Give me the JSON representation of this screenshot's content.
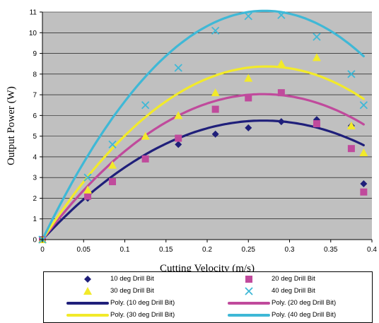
{
  "chart_data": {
    "type": "scatter",
    "title": "",
    "xlabel": "Cutting Velocity (m/s)",
    "ylabel": "Output Power (W)",
    "xlim": [
      0,
      0.4
    ],
    "ylim": [
      0,
      11
    ],
    "xticks": [
      "0",
      "0.05",
      "0.1",
      "0.15",
      "0.2",
      "0.25",
      "0.3",
      "0.35",
      "0.4"
    ],
    "yticks": [
      "0",
      "1",
      "2",
      "3",
      "4",
      "5",
      "6",
      "7",
      "8",
      "9",
      "10",
      "11"
    ],
    "grid": true,
    "legend_position": "bottom",
    "series": [
      {
        "name": "10 deg Drill Bit",
        "marker": "diamond",
        "color": "#1f1f7a",
        "x": [
          0,
          0.055,
          0.085,
          0.125,
          0.165,
          0.21,
          0.25,
          0.29,
          0.333,
          0.375,
          0.39
        ],
        "y": [
          0,
          2,
          2.8,
          3.9,
          4.6,
          5.1,
          5.4,
          5.7,
          5.8,
          5.5,
          2.7
        ]
      },
      {
        "name": "20 deg Drill Bit",
        "marker": "square",
        "color": "#c04a9c",
        "x": [
          0,
          0.055,
          0.085,
          0.125,
          0.165,
          0.21,
          0.25,
          0.29,
          0.333,
          0.375,
          0.39
        ],
        "y": [
          0,
          2.1,
          2.8,
          3.9,
          4.9,
          6.3,
          6.85,
          7.1,
          5.6,
          4.4,
          2.3
        ]
      },
      {
        "name": "30 deg Drill Bit",
        "marker": "triangle",
        "color": "#f2ea2a",
        "x": [
          0,
          0.055,
          0.085,
          0.125,
          0.165,
          0.21,
          0.25,
          0.29,
          0.333,
          0.375,
          0.39
        ],
        "y": [
          0,
          2.4,
          3.6,
          5,
          6,
          7.1,
          7.8,
          8.5,
          8.8,
          5.5,
          4.2
        ]
      },
      {
        "name": "40 deg Drill Bit",
        "marker": "x",
        "color": "#3fb8d6",
        "x": [
          0,
          0.055,
          0.085,
          0.125,
          0.165,
          0.21,
          0.25,
          0.29,
          0.333,
          0.375,
          0.39
        ],
        "y": [
          0,
          3,
          4.6,
          6.5,
          8.3,
          10.1,
          10.8,
          10.85,
          9.8,
          8,
          6.5
        ]
      }
    ],
    "trendlines": [
      {
        "name": "Poly. (10 deg Drill Bit)",
        "color": "#1f1f7a",
        "coefficients": [
          0,
          42.9,
          -80
        ]
      },
      {
        "name": "Poly. (20 deg Drill Bit)",
        "color": "#c04a9c",
        "coefficients": [
          0,
          52.5,
          -98
        ]
      },
      {
        "name": "Poly. (30 deg Drill Bit)",
        "color": "#f2ea2a",
        "coefficients": [
          0,
          61.5,
          -113
        ]
      },
      {
        "name": "Poly. (40 deg Drill Bit)",
        "color": "#3fb8d6",
        "coefficients": [
          0,
          82,
          -152
        ]
      }
    ]
  }
}
